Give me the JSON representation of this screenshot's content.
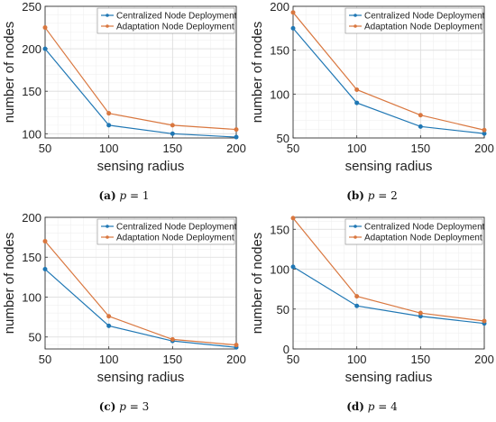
{
  "chart_data": [
    {
      "type": "line",
      "caption_letter": "(a)",
      "caption_var": "p",
      "caption_eq": " = 1",
      "xlabel": "sensing radius",
      "ylabel": "number of nodes",
      "x": [
        50,
        100,
        150,
        200
      ],
      "xlim": [
        50,
        200
      ],
      "ylim": [
        95,
        250
      ],
      "xticks": [
        50,
        100,
        150,
        200
      ],
      "yticks": [
        100,
        150,
        200,
        250
      ],
      "grid": true,
      "legend": "top-right",
      "series": [
        {
          "name": "Centralized Node Deployment",
          "color": "#1f77b4",
          "values": [
            200,
            110,
            100,
            96
          ]
        },
        {
          "name": "Adaptation Node Deployment",
          "color": "#d9773f",
          "values": [
            225,
            124,
            110,
            105
          ]
        }
      ]
    },
    {
      "type": "line",
      "caption_letter": "(b)",
      "caption_var": "p",
      "caption_eq": " = 2",
      "xlabel": "sensing radius",
      "ylabel": "number of nodes",
      "x": [
        50,
        100,
        150,
        200
      ],
      "xlim": [
        50,
        200
      ],
      "ylim": [
        50,
        200
      ],
      "xticks": [
        50,
        100,
        150,
        200
      ],
      "yticks": [
        50,
        100,
        150,
        200
      ],
      "grid": true,
      "legend": "top-right",
      "series": [
        {
          "name": "Centralized Node Deployment",
          "color": "#1f77b4",
          "values": [
            175,
            90,
            63,
            55
          ]
        },
        {
          "name": "Adaptation Node Deployment",
          "color": "#d9773f",
          "values": [
            193,
            105,
            76,
            59
          ]
        }
      ]
    },
    {
      "type": "line",
      "caption_letter": "(c)",
      "caption_var": "p",
      "caption_eq": " = 3",
      "xlabel": "sensing radius",
      "ylabel": "number of nodes",
      "x": [
        50,
        100,
        150,
        200
      ],
      "xlim": [
        50,
        200
      ],
      "ylim": [
        35,
        200
      ],
      "xticks": [
        50,
        100,
        150,
        200
      ],
      "yticks": [
        50,
        100,
        150,
        200
      ],
      "grid": true,
      "legend": "top-right",
      "series": [
        {
          "name": "Centralized Node Deployment",
          "color": "#1f77b4",
          "values": [
            135,
            64,
            45,
            37
          ]
        },
        {
          "name": "Adaptation Node Deployment",
          "color": "#d9773f",
          "values": [
            170,
            76,
            47,
            40
          ]
        }
      ]
    },
    {
      "type": "line",
      "caption_letter": "(d)",
      "caption_var": "p",
      "caption_eq": " = 4",
      "xlabel": "sensing radius",
      "ylabel": "number of nodes",
      "x": [
        50,
        100,
        150,
        200
      ],
      "xlim": [
        50,
        200
      ],
      "ylim": [
        0,
        165
      ],
      "xticks": [
        50,
        100,
        150,
        200
      ],
      "yticks": [
        0,
        50,
        100,
        150
      ],
      "grid": true,
      "legend": "top-right",
      "series": [
        {
          "name": "Centralized Node Deployment",
          "color": "#1f77b4",
          "values": [
            103,
            54,
            41,
            32
          ]
        },
        {
          "name": "Adaptation Node Deployment",
          "color": "#d9773f",
          "values": [
            164,
            66,
            45,
            35
          ]
        }
      ]
    }
  ]
}
